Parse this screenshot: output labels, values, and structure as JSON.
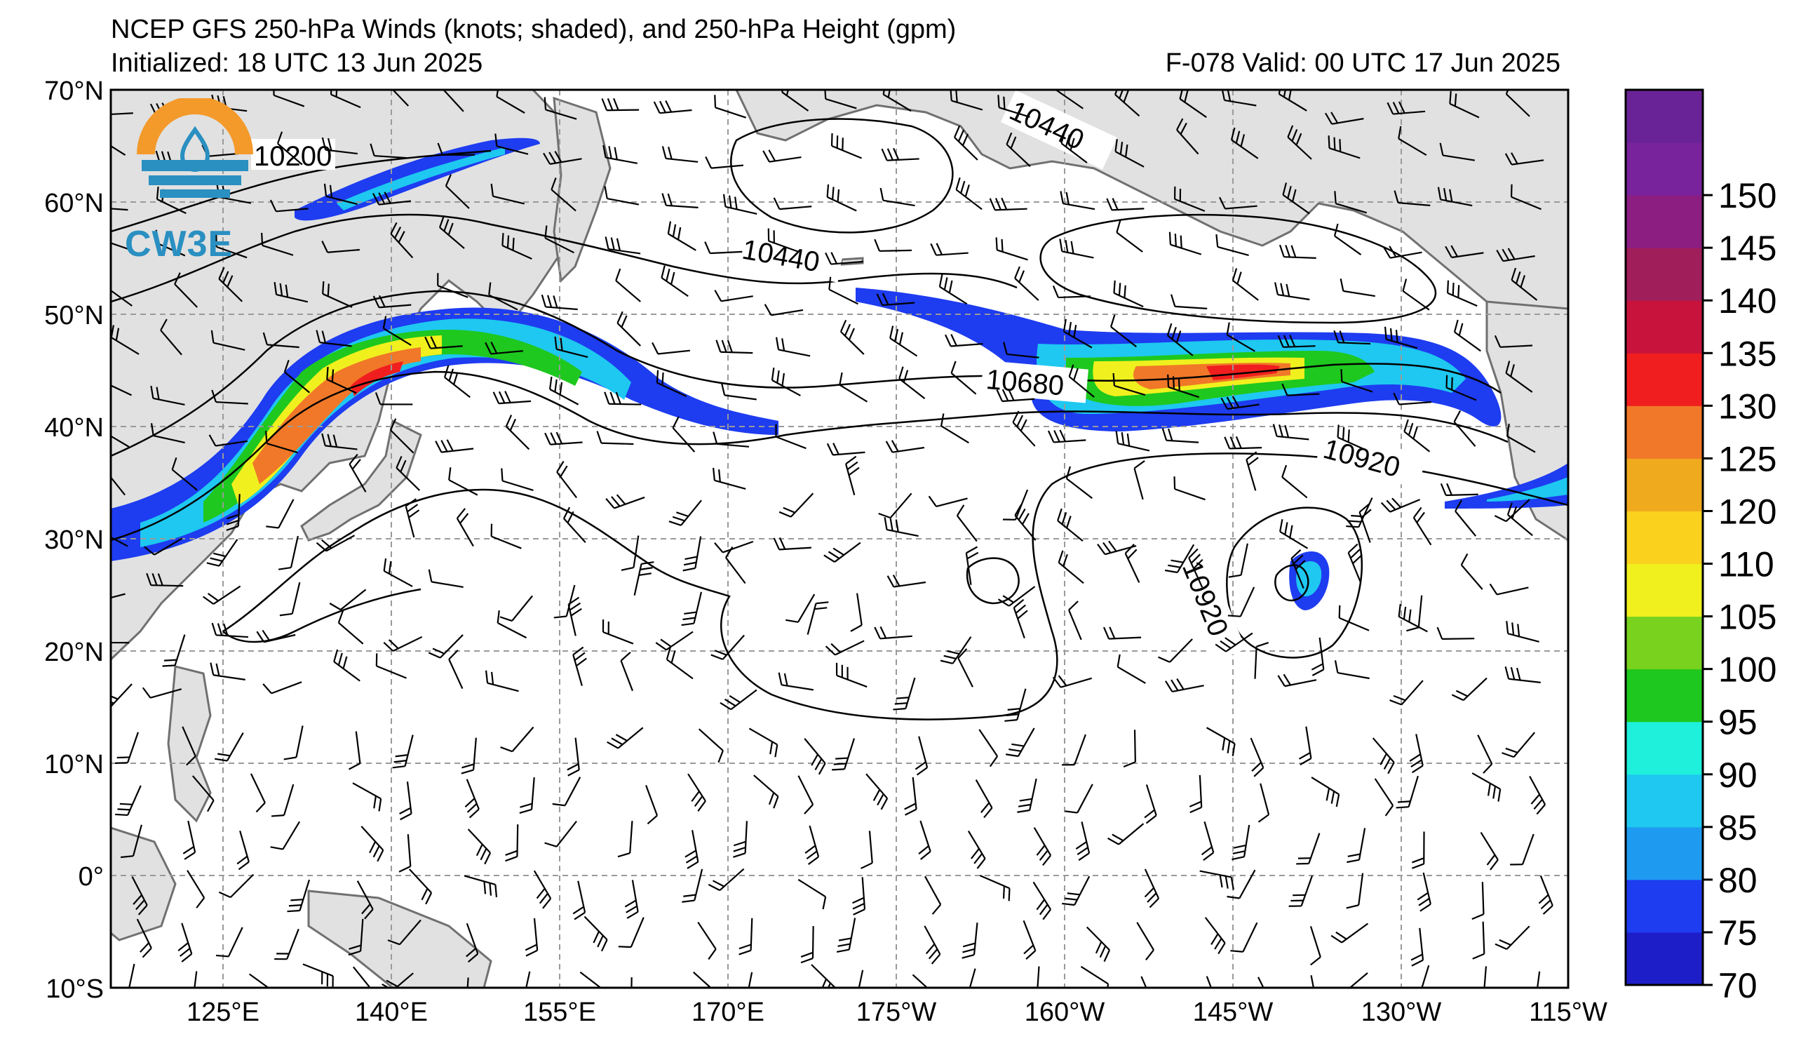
{
  "header": {
    "title": "NCEP GFS 250-hPa Winds (knots; shaded), and 250-hPa Height (gpm)",
    "initialized": "Initialized: 18 UTC 13 Jun 2025",
    "valid": "F-078  Valid: 00 UTC 17 Jun 2025"
  },
  "logo": {
    "text": "CW3E",
    "ring_color": "#f39a2b",
    "wave_color": "#2a8fc1"
  },
  "axes": {
    "lat_labels": [
      "70°N",
      "60°N",
      "50°N",
      "40°N",
      "30°N",
      "20°N",
      "10°N",
      "0°",
      "10°S"
    ],
    "lon_labels": [
      "125°E",
      "140°E",
      "155°E",
      "170°E",
      "175°W",
      "160°W",
      "145°W",
      "130°W",
      "115°W"
    ]
  },
  "contour_labels": [
    {
      "text": "10200"
    },
    {
      "text": "10440"
    },
    {
      "text": "10440"
    },
    {
      "text": "10680"
    },
    {
      "text": "10920"
    },
    {
      "text": "10920"
    }
  ],
  "colorbar": {
    "ticks": [
      "70",
      "75",
      "80",
      "85",
      "90",
      "95",
      "100",
      "105",
      "110",
      "120",
      "125",
      "130",
      "135",
      "140",
      "145",
      "150"
    ],
    "colors": [
      "#1e1ec8",
      "#1e3cf0",
      "#1e9bf0",
      "#1ec8f0",
      "#1ef0dc",
      "#1ec81e",
      "#78d21e",
      "#f0f01e",
      "#fad21e",
      "#f0aa1e",
      "#f07828",
      "#f01e1e",
      "#c8143c",
      "#a01e5a",
      "#8c1e82",
      "#78239b"
    ],
    "last_color": "#6a2396"
  },
  "map_colors": {
    "land": "#e1e1e1",
    "coast": "#707070",
    "grid": "#9a9a9a"
  }
}
